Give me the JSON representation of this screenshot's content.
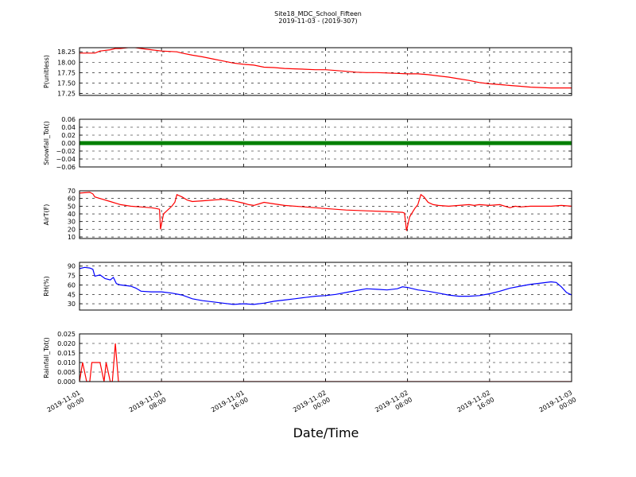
{
  "figure": {
    "title": "Site18_MDC_School_Fifteen",
    "subtitle": "2019-11-03 - (2019-307)",
    "xlabel": "Date/Time"
  },
  "chart_data": {
    "type": "line",
    "x_range": [
      "2019-11-01 00:00",
      "2019-11-03 00:00"
    ],
    "x_ticks": [
      {
        "line1": "2019-11-01",
        "line2": "00:00",
        "value": 0
      },
      {
        "line1": "2019-11-01",
        "line2": "08:00",
        "value": 8
      },
      {
        "line1": "2019-11-01",
        "line2": "16:00",
        "value": 16
      },
      {
        "line1": "2019-11-02",
        "line2": "00:00",
        "value": 24
      },
      {
        "line1": "2019-11-02",
        "line2": "08:00",
        "value": 32
      },
      {
        "line1": "2019-11-02",
        "line2": "16:00",
        "value": 40
      },
      {
        "line1": "2019-11-03",
        "line2": "00:00",
        "value": 48
      }
    ],
    "x_unit": "hours since 2019-11-01 00:00",
    "xlabel": "Date/Time",
    "grid": true,
    "panels": [
      {
        "ylabel": "P(unitless)",
        "ylim": [
          17.2,
          18.35
        ],
        "yticks": [
          "18.25",
          "18.00",
          "17.75",
          "17.50",
          "17.25"
        ],
        "ytick_values": [
          18.25,
          18.0,
          17.75,
          17.5,
          17.25
        ],
        "color": "#ff0000",
        "marker": false,
        "points": [
          [
            0,
            18.22
          ],
          [
            1.5,
            18.22
          ],
          [
            2,
            18.27
          ],
          [
            3,
            18.3
          ],
          [
            3.5,
            18.33
          ],
          [
            4,
            18.33
          ],
          [
            5,
            18.36
          ],
          [
            5.5,
            18.35
          ],
          [
            6,
            18.33
          ],
          [
            7,
            18.3
          ],
          [
            8,
            18.27
          ],
          [
            9.5,
            18.25
          ],
          [
            10,
            18.22
          ],
          [
            11,
            18.17
          ],
          [
            12,
            18.13
          ],
          [
            13,
            18.08
          ],
          [
            14,
            18.03
          ],
          [
            15,
            17.98
          ],
          [
            16,
            17.95
          ],
          [
            17,
            17.93
          ],
          [
            18,
            17.88
          ],
          [
            19,
            17.87
          ],
          [
            20,
            17.85
          ],
          [
            21,
            17.84
          ],
          [
            22,
            17.83
          ],
          [
            23,
            17.82
          ],
          [
            24,
            17.82
          ],
          [
            25,
            17.8
          ],
          [
            26,
            17.78
          ],
          [
            27,
            17.76
          ],
          [
            28,
            17.75
          ],
          [
            29,
            17.75
          ],
          [
            30,
            17.74
          ],
          [
            31,
            17.73
          ],
          [
            32,
            17.72
          ],
          [
            33,
            17.72
          ],
          [
            34,
            17.7
          ],
          [
            35,
            17.67
          ],
          [
            36,
            17.64
          ],
          [
            37,
            17.6
          ],
          [
            38,
            17.56
          ],
          [
            39,
            17.51
          ],
          [
            40,
            17.48
          ],
          [
            41,
            17.46
          ],
          [
            42,
            17.44
          ],
          [
            43,
            17.42
          ],
          [
            44,
            17.4
          ],
          [
            45,
            17.39
          ],
          [
            46,
            17.38
          ],
          [
            47,
            17.38
          ],
          [
            48,
            17.38
          ]
        ]
      },
      {
        "ylabel": "Snowfall_Tot()",
        "ylim": [
          -0.06,
          0.06
        ],
        "yticks": [
          "0.06",
          "0.04",
          "0.02",
          "0.00",
          "−0.02",
          "−0.04",
          "−0.06"
        ],
        "ytick_values": [
          0.06,
          0.04,
          0.02,
          0.0,
          -0.02,
          -0.04,
          -0.06
        ],
        "color": "#008000",
        "marker": true,
        "points": [
          [
            0,
            0
          ],
          [
            48,
            0
          ]
        ]
      },
      {
        "ylabel": "AirT(F)",
        "ylim": [
          8,
          70
        ],
        "yticks": [
          "70",
          "60",
          "50",
          "40",
          "30",
          "20",
          "10"
        ],
        "ytick_values": [
          70,
          60,
          50,
          40,
          30,
          20,
          10
        ],
        "color": "#ff0000",
        "marker": false,
        "points": [
          [
            0,
            67
          ],
          [
            1,
            68
          ],
          [
            1.3,
            66
          ],
          [
            1.5,
            62
          ],
          [
            2,
            60
          ],
          [
            3,
            56
          ],
          [
            4,
            52
          ],
          [
            5,
            50
          ],
          [
            6,
            49
          ],
          [
            7,
            48
          ],
          [
            7.5,
            47
          ],
          [
            7.8,
            46
          ],
          [
            7.9,
            20
          ],
          [
            8.2,
            40
          ],
          [
            8.6,
            45
          ],
          [
            9,
            50
          ],
          [
            9.3,
            55
          ],
          [
            9.5,
            65
          ],
          [
            10,
            62
          ],
          [
            10.5,
            58
          ],
          [
            11,
            56
          ],
          [
            12,
            57
          ],
          [
            13,
            58
          ],
          [
            14,
            59
          ],
          [
            15,
            57
          ],
          [
            16,
            54
          ],
          [
            16.5,
            52
          ],
          [
            17,
            51
          ],
          [
            17.5,
            53
          ],
          [
            18,
            55
          ],
          [
            19,
            53
          ],
          [
            20,
            51
          ],
          [
            22,
            49
          ],
          [
            24,
            47
          ],
          [
            26,
            45
          ],
          [
            28,
            44
          ],
          [
            30,
            43
          ],
          [
            31.5,
            42
          ],
          [
            31.7,
            41
          ],
          [
            31.9,
            18
          ],
          [
            32.2,
            36
          ],
          [
            32.7,
            47
          ],
          [
            33,
            52
          ],
          [
            33.3,
            65
          ],
          [
            33.6,
            62
          ],
          [
            34,
            55
          ],
          [
            34.5,
            52
          ],
          [
            35,
            51
          ],
          [
            36,
            50
          ],
          [
            37,
            51
          ],
          [
            38,
            52
          ],
          [
            38.5,
            51
          ],
          [
            39,
            52
          ],
          [
            40,
            51
          ],
          [
            41,
            52
          ],
          [
            41.5,
            50
          ],
          [
            42,
            48
          ],
          [
            42.5,
            50
          ],
          [
            43,
            49
          ],
          [
            44,
            50
          ],
          [
            45,
            50
          ],
          [
            46,
            50
          ],
          [
            47,
            51
          ],
          [
            48,
            50
          ]
        ]
      },
      {
        "ylabel": "RH(%)",
        "ylim": [
          20,
          96
        ],
        "yticks": [
          "90",
          "75",
          "60",
          "45",
          "30"
        ],
        "ytick_values": [
          90,
          75,
          60,
          45,
          30
        ],
        "color": "#0000ff",
        "marker": false,
        "points": [
          [
            0,
            86
          ],
          [
            0.5,
            88
          ],
          [
            1,
            87
          ],
          [
            1.3,
            85
          ],
          [
            1.5,
            74
          ],
          [
            2,
            76
          ],
          [
            2.5,
            70
          ],
          [
            3,
            68
          ],
          [
            3.3,
            72
          ],
          [
            3.6,
            62
          ],
          [
            4,
            60
          ],
          [
            5,
            58
          ],
          [
            5.5,
            55
          ],
          [
            6,
            50
          ],
          [
            7,
            49
          ],
          [
            8,
            49
          ],
          [
            9,
            47
          ],
          [
            10,
            44
          ],
          [
            11,
            38
          ],
          [
            12,
            35
          ],
          [
            13,
            33
          ],
          [
            14,
            31
          ],
          [
            15,
            29
          ],
          [
            16,
            30
          ],
          [
            17,
            29
          ],
          [
            18,
            31
          ],
          [
            19,
            34
          ],
          [
            20,
            36
          ],
          [
            21,
            38
          ],
          [
            22,
            40
          ],
          [
            23,
            42
          ],
          [
            24,
            43
          ],
          [
            25,
            45
          ],
          [
            26,
            48
          ],
          [
            27,
            51
          ],
          [
            28,
            54
          ],
          [
            29,
            53
          ],
          [
            30,
            52
          ],
          [
            31,
            54
          ],
          [
            31.5,
            57
          ],
          [
            32,
            56
          ],
          [
            33,
            52
          ],
          [
            34,
            50
          ],
          [
            35,
            47
          ],
          [
            36,
            44
          ],
          [
            37,
            42
          ],
          [
            38,
            42
          ],
          [
            39,
            43
          ],
          [
            40,
            46
          ],
          [
            41,
            50
          ],
          [
            42,
            55
          ],
          [
            43,
            58
          ],
          [
            44,
            61
          ],
          [
            45,
            63
          ],
          [
            46,
            65
          ],
          [
            46.5,
            64
          ],
          [
            47,
            57
          ],
          [
            47.5,
            48
          ],
          [
            48,
            44
          ]
        ]
      },
      {
        "ylabel": "Rainfall_Tot()",
        "ylim": [
          0,
          0.025
        ],
        "yticks": [
          "0.025",
          "0.020",
          "0.015",
          "0.010",
          "0.005",
          "0.000"
        ],
        "ytick_values": [
          0.025,
          0.02,
          0.015,
          0.01,
          0.005,
          0.0
        ],
        "color": "#ff0000",
        "marker": false,
        "points": [
          [
            0,
            0
          ],
          [
            0.3,
            0.01
          ],
          [
            0.7,
            0
          ],
          [
            1,
            0
          ],
          [
            1.2,
            0.01
          ],
          [
            2,
            0.01
          ],
          [
            2.4,
            0
          ],
          [
            2.6,
            0.01
          ],
          [
            3,
            0
          ],
          [
            3.2,
            0
          ],
          [
            3.5,
            0.02
          ],
          [
            3.8,
            0
          ],
          [
            48,
            0
          ]
        ]
      }
    ]
  }
}
